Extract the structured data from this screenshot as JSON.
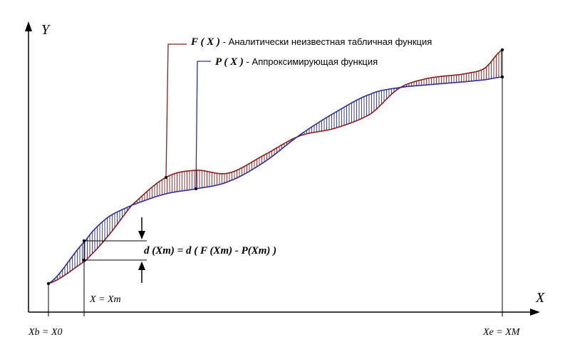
{
  "axes": {
    "y_label": "Y",
    "x_label": "X"
  },
  "legend": [
    {
      "symbol": "F ( X )",
      "text": "- Аналитически неизвестная табличная функция"
    },
    {
      "symbol": "P ( X )",
      "text": "- Аппроксимирующая функция"
    }
  ],
  "deviation_label": "d (Xm) = d ( F (Xm) - P(Xm) )",
  "point_label": "X = Xm",
  "start_label": "Xb = X0",
  "end_label": "Xe = XM"
}
